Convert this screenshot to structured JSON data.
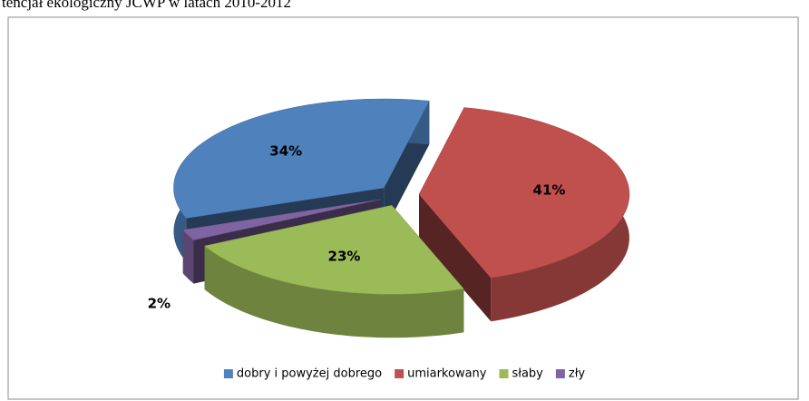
{
  "chart_data": {
    "type": "pie3d",
    "title": "tencjał ekologiczny JCWP w latach 2010-2012",
    "categories": [
      "dobry i powyżej dobrego",
      "umiarkowany",
      "słaby",
      "zły"
    ],
    "values": [
      34,
      41,
      23,
      2
    ],
    "value_labels": [
      "34%",
      "41%",
      "23%",
      "2%"
    ],
    "colors": [
      "#4f81bd",
      "#c0504d",
      "#9bbb59",
      "#8064a2"
    ],
    "legend": "bottom"
  }
}
